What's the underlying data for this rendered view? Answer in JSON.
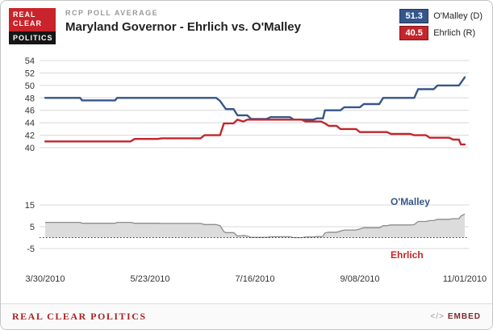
{
  "header": {
    "logo": {
      "line1": "REAL",
      "line2": "CLEAR",
      "line3": "POLITICS"
    },
    "kicker": "RCP POLL AVERAGE",
    "title": "Maryland Governor - Ehrlich vs. O'Malley"
  },
  "legend": {
    "omalley": {
      "value": "51.3",
      "label": "O'Malley (D)",
      "color": "#35568b"
    },
    "ehrlich": {
      "value": "40.5",
      "label": "Ehrlich (R)",
      "color": "#c3262c"
    }
  },
  "footer": {
    "brand": "REAL CLEAR POLITICS",
    "embed_icon": "</>",
    "embed_label": "EMBED"
  },
  "chart_data": {
    "type": "line",
    "title": "Maryland Governor - Ehrlich vs. O'Malley",
    "subtitle": "RCP POLL AVERAGE",
    "x_ticks": [
      "3/30/2010",
      "5/23/2010",
      "7/16/2010",
      "9/08/2010",
      "11/01/2010"
    ],
    "x_tick_days": [
      0,
      54,
      108,
      162,
      216
    ],
    "main_yticks": [
      54,
      52,
      50,
      48,
      46,
      44,
      42,
      40
    ],
    "spread_yticks": [
      15,
      5,
      -5
    ],
    "main_ylim": [
      39,
      55
    ],
    "grid": true,
    "series": [
      {
        "name": "O'Malley (D)",
        "color": "#35568b",
        "final_value": 51.3,
        "points": [
          [
            0,
            48
          ],
          [
            18,
            48
          ],
          [
            19,
            47.6
          ],
          [
            36,
            47.6
          ],
          [
            37,
            48
          ],
          [
            88,
            48
          ],
          [
            90,
            47.5
          ],
          [
            93,
            46.2
          ],
          [
            97,
            46.2
          ],
          [
            99,
            45.2
          ],
          [
            104,
            45.2
          ],
          [
            106,
            44.6
          ],
          [
            114,
            44.6
          ],
          [
            116,
            44.9
          ],
          [
            126,
            44.9
          ],
          [
            128,
            44.5
          ],
          [
            138,
            44.5
          ],
          [
            140,
            44.7
          ],
          [
            143,
            44.7
          ],
          [
            144,
            46
          ],
          [
            152,
            46
          ],
          [
            154,
            46.5
          ],
          [
            162,
            46.5
          ],
          [
            164,
            47
          ],
          [
            172,
            47
          ],
          [
            174,
            48
          ],
          [
            190,
            48
          ],
          [
            192,
            49.4
          ],
          [
            200,
            49.4
          ],
          [
            202,
            50
          ],
          [
            213,
            50
          ],
          [
            216,
            51.3
          ]
        ]
      },
      {
        "name": "Ehrlich (R)",
        "color": "#c3262c",
        "final_value": 40.5,
        "points": [
          [
            0,
            41
          ],
          [
            44,
            41
          ],
          [
            46,
            41.4
          ],
          [
            58,
            41.4
          ],
          [
            60,
            41.5
          ],
          [
            80,
            41.5
          ],
          [
            82,
            42
          ],
          [
            90,
            42
          ],
          [
            92,
            43.9
          ],
          [
            97,
            43.9
          ],
          [
            99,
            44.5
          ],
          [
            102,
            44.2
          ],
          [
            104,
            44.5
          ],
          [
            132,
            44.5
          ],
          [
            134,
            44.2
          ],
          [
            142,
            44.2
          ],
          [
            144,
            43.9
          ],
          [
            146,
            43.5
          ],
          [
            150,
            43.5
          ],
          [
            152,
            43
          ],
          [
            160,
            43
          ],
          [
            162,
            42.5
          ],
          [
            176,
            42.5
          ],
          [
            178,
            42.2
          ],
          [
            188,
            42.2
          ],
          [
            190,
            42
          ],
          [
            196,
            42
          ],
          [
            198,
            41.6
          ],
          [
            208,
            41.6
          ],
          [
            210,
            41.3
          ],
          [
            213,
            41.3
          ],
          [
            214,
            40.5
          ],
          [
            216,
            40.5
          ]
        ]
      }
    ],
    "spread": {
      "description": "Gray area = O'Malley minus Ehrlich spread",
      "fill_color": "#dcdcdc",
      "edge_color": "#8c8c8c",
      "zero_line_dotted": true
    },
    "annotations": [
      {
        "text": "O'Malley",
        "color": "#35568b"
      },
      {
        "text": "Ehrlich",
        "color": "#c3262c"
      }
    ]
  }
}
